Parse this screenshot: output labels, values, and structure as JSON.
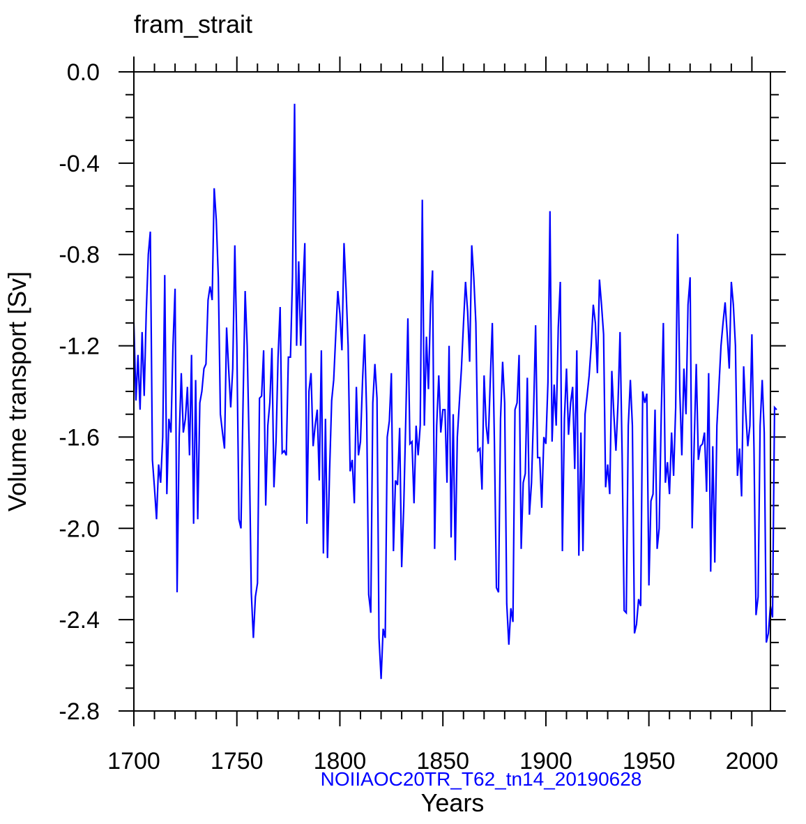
{
  "chart_data": {
    "type": "line",
    "title": "fram_strait",
    "xlabel": "Years",
    "ylabel": "Volume transport [Sv]",
    "subtitle": "NOIIAOC20TR_T62_tn14_20190628",
    "subtitle_color": "#0000ff",
    "line_color": "#0000ff",
    "xlim": [
      1700,
      2009
    ],
    "ylim": [
      -2.8,
      0.0
    ],
    "x_ticks": [
      {
        "value": 1700,
        "label": "1700"
      },
      {
        "value": 1750,
        "label": "1750"
      },
      {
        "value": 1800,
        "label": "1800"
      },
      {
        "value": 1850,
        "label": "1850"
      },
      {
        "value": 1900,
        "label": "1900"
      },
      {
        "value": 1950,
        "label": "1950"
      },
      {
        "value": 2000,
        "label": "2000"
      }
    ],
    "y_ticks": [
      {
        "value": 0.0,
        "label": "0.0"
      },
      {
        "value": -0.4,
        "label": "-0.4"
      },
      {
        "value": -0.8,
        "label": "-0.8"
      },
      {
        "value": -1.2,
        "label": "-1.2"
      },
      {
        "value": -1.6,
        "label": "-1.6"
      },
      {
        "value": -2.0,
        "label": "-2.0"
      },
      {
        "value": -2.4,
        "label": "-2.4"
      },
      {
        "value": -2.8,
        "label": "-2.8"
      }
    ],
    "x_start": 1700,
    "series": [
      {
        "name": "fram_strait",
        "values": [
          -1.1,
          -1.44,
          -1.24,
          -1.48,
          -1.14,
          -1.42,
          -1.06,
          -0.8,
          -0.7,
          -1.7,
          -1.82,
          -1.96,
          -1.72,
          -1.8,
          -1.6,
          -0.89,
          -1.85,
          -1.52,
          -1.58,
          -1.2,
          -0.95,
          -2.28,
          -1.6,
          -1.32,
          -1.58,
          -1.52,
          -1.38,
          -1.68,
          -1.24,
          -1.98,
          -1.35,
          -1.96,
          -1.45,
          -1.4,
          -1.3,
          -1.28,
          -1.0,
          -0.94,
          -1.0,
          -0.51,
          -0.65,
          -0.9,
          -1.5,
          -1.58,
          -1.65,
          -1.12,
          -1.3,
          -1.47,
          -1.3,
          -0.76,
          -1.2,
          -1.96,
          -2.0,
          -1.45,
          -0.96,
          -1.2,
          -1.66,
          -2.28,
          -2.48,
          -2.3,
          -2.24,
          -1.43,
          -1.42,
          -1.22,
          -1.9,
          -1.55,
          -1.45,
          -1.21,
          -1.82,
          -1.62,
          -1.25,
          -1.03,
          -1.67,
          -1.66,
          -1.68,
          -1.25,
          -1.25,
          -0.9,
          -0.14,
          -1.2,
          -0.83,
          -1.2,
          -0.96,
          -0.75,
          -1.98,
          -1.4,
          -1.32,
          -1.64,
          -1.55,
          -1.48,
          -1.79,
          -1.22,
          -2.11,
          -1.52,
          -2.13,
          -1.75,
          -1.44,
          -1.35,
          -1.15,
          -0.96,
          -1.06,
          -1.22,
          -0.75,
          -0.95,
          -1.2,
          -1.75,
          -1.7,
          -1.89,
          -1.38,
          -1.68,
          -1.62,
          -1.35,
          -1.15,
          -1.5,
          -2.29,
          -2.37,
          -1.45,
          -1.28,
          -1.43,
          -2.48,
          -2.66,
          -2.44,
          -2.48,
          -1.6,
          -1.53,
          -1.32,
          -2.1,
          -1.79,
          -1.81,
          -1.56,
          -2.17,
          -1.9,
          -1.52,
          -1.08,
          -1.63,
          -1.62,
          -1.89,
          -1.55,
          -1.68,
          -1.55,
          -0.56,
          -1.55,
          -1.16,
          -1.39,
          -1.02,
          -0.87,
          -2.09,
          -1.55,
          -1.33,
          -1.58,
          -1.48,
          -1.48,
          -1.8,
          -1.2,
          -2.04,
          -1.5,
          -2.14,
          -1.6,
          -1.45,
          -1.3,
          -1.1,
          -0.92,
          -1.05,
          -1.27,
          -0.76,
          -0.9,
          -1.1,
          -1.66,
          -1.65,
          -1.83,
          -1.33,
          -1.55,
          -1.63,
          -1.35,
          -1.1,
          -1.62,
          -2.26,
          -2.28,
          -1.52,
          -1.27,
          -1.45,
          -2.33,
          -2.51,
          -2.35,
          -2.41,
          -1.48,
          -1.45,
          -1.24,
          -2.09,
          -1.8,
          -1.76,
          -1.34,
          -1.94,
          -1.8,
          -1.5,
          -1.11,
          -1.69,
          -1.69,
          -1.91,
          -1.6,
          -1.63,
          -1.36,
          -0.61,
          -1.62,
          -1.37,
          -1.55,
          -1.12,
          -0.92,
          -2.1,
          -1.52,
          -1.3,
          -1.59,
          -1.45,
          -1.38,
          -1.74,
          -1.22,
          -2.12,
          -1.58,
          -2.1,
          -1.5,
          -1.42,
          -1.33,
          -1.2,
          -1.02,
          -1.1,
          -1.32,
          -0.91,
          -1.02,
          -1.15,
          -1.82,
          -1.72,
          -1.85,
          -1.31,
          -1.5,
          -1.66,
          -1.45,
          -1.14,
          -1.68,
          -2.36,
          -2.37,
          -1.55,
          -1.35,
          -1.55,
          -2.46,
          -2.42,
          -2.31,
          -2.34,
          -1.4,
          -1.45,
          -1.41,
          -2.25,
          -1.88,
          -1.85,
          -1.48,
          -2.09,
          -2.0,
          -1.5,
          -1.1,
          -1.8,
          -1.71,
          -1.85,
          -1.58,
          -1.77,
          -1.47,
          -0.71,
          -1.4,
          -1.68,
          -1.3,
          -1.5,
          -1.02,
          -0.9,
          -2.0,
          -1.62,
          -1.28,
          -1.7,
          -1.64,
          -1.63,
          -1.58,
          -1.84,
          -1.32,
          -2.19,
          -1.64,
          -2.15,
          -1.55,
          -1.38,
          -1.2,
          -1.1,
          -1.01,
          -1.15,
          -1.3,
          -0.92,
          -1.02,
          -1.2,
          -1.77,
          -1.65,
          -1.86,
          -1.29,
          -1.49,
          -1.64,
          -1.55,
          -1.15,
          -1.65,
          -2.38,
          -2.3,
          -1.55,
          -1.35,
          -1.58,
          -2.5,
          -2.46,
          -2.34,
          -2.39,
          -1.47,
          -1.48
        ]
      }
    ]
  }
}
